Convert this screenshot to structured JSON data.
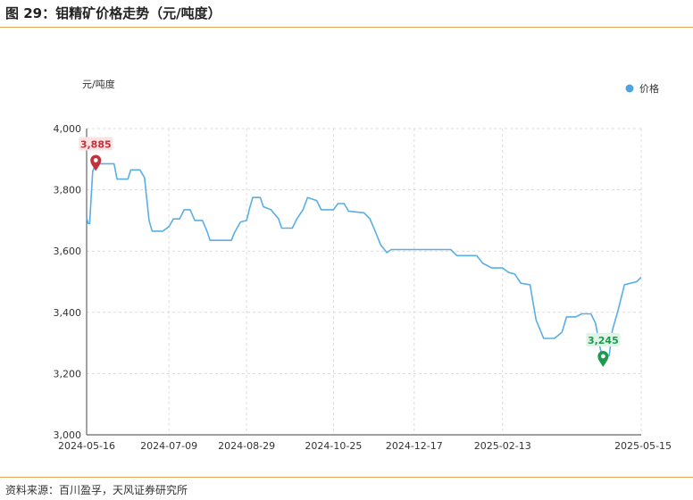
{
  "figure": {
    "title": "图 29：钼精矿价格走势（元/吨度）",
    "source": "资料来源：百川盈孚，天风证券研究所"
  },
  "chart_data": {
    "type": "line",
    "unit_label": "元/吨度",
    "legend": {
      "label": "价格",
      "placement": "top-right",
      "color": "#4FA3E0"
    },
    "line_color": "#5AAEE3",
    "ylim": [
      3000,
      4000
    ],
    "y_ticks": [
      "3,000",
      "3,200",
      "3,400",
      "3,600",
      "3,800",
      "4,000"
    ],
    "y_tick_values": [
      3000,
      3200,
      3400,
      3600,
      3800,
      4000
    ],
    "x_tick_labels": [
      "2024-05-16",
      "2024-07-09",
      "2024-08-29",
      "2024-10-25",
      "2024-12-17",
      "2025-02-13",
      "2025-05-15"
    ],
    "x_tick_dates": [
      "2024-05-16",
      "2024-07-09",
      "2024-08-29",
      "2024-10-25",
      "2024-12-17",
      "2025-02-13",
      "2025-05-15"
    ],
    "grid": true,
    "series": [
      {
        "name": "价格",
        "points": [
          [
            "2024-05-16",
            3710
          ],
          [
            "2024-05-17",
            3690
          ],
          [
            "2024-05-18",
            3690
          ],
          [
            "2024-05-20",
            3860
          ],
          [
            "2024-05-22",
            3885
          ],
          [
            "2024-05-30",
            3885
          ],
          [
            "2024-06-03",
            3885
          ],
          [
            "2024-06-05",
            3835
          ],
          [
            "2024-06-12",
            3835
          ],
          [
            "2024-06-14",
            3865
          ],
          [
            "2024-06-20",
            3865
          ],
          [
            "2024-06-23",
            3840
          ],
          [
            "2024-06-26",
            3700
          ],
          [
            "2024-06-28",
            3665
          ],
          [
            "2024-07-05",
            3665
          ],
          [
            "2024-07-09",
            3680
          ],
          [
            "2024-07-12",
            3705
          ],
          [
            "2024-07-16",
            3705
          ],
          [
            "2024-07-19",
            3735
          ],
          [
            "2024-07-23",
            3735
          ],
          [
            "2024-07-26",
            3700
          ],
          [
            "2024-07-31",
            3700
          ],
          [
            "2024-08-03",
            3665
          ],
          [
            "2024-08-05",
            3635
          ],
          [
            "2024-08-19",
            3635
          ],
          [
            "2024-08-21",
            3660
          ],
          [
            "2024-08-25",
            3695
          ],
          [
            "2024-08-29",
            3700
          ],
          [
            "2024-08-31",
            3740
          ],
          [
            "2024-09-02",
            3775
          ],
          [
            "2024-09-07",
            3775
          ],
          [
            "2024-09-09",
            3745
          ],
          [
            "2024-09-14",
            3735
          ],
          [
            "2024-09-19",
            3705
          ],
          [
            "2024-09-21",
            3675
          ],
          [
            "2024-09-28",
            3675
          ],
          [
            "2024-10-01",
            3705
          ],
          [
            "2024-10-05",
            3735
          ],
          [
            "2024-10-08",
            3775
          ],
          [
            "2024-10-14",
            3765
          ],
          [
            "2024-10-17",
            3735
          ],
          [
            "2024-10-25",
            3735
          ],
          [
            "2024-10-28",
            3755
          ],
          [
            "2024-11-01",
            3755
          ],
          [
            "2024-11-04",
            3730
          ],
          [
            "2024-11-14",
            3725
          ],
          [
            "2024-11-18",
            3705
          ],
          [
            "2024-11-21",
            3670
          ],
          [
            "2024-11-25",
            3620
          ],
          [
            "2024-11-29",
            3595
          ],
          [
            "2024-12-02",
            3605
          ],
          [
            "2024-12-17",
            3605
          ],
          [
            "2025-01-10",
            3605
          ],
          [
            "2025-01-14",
            3585
          ],
          [
            "2025-01-27",
            3585
          ],
          [
            "2025-01-31",
            3560
          ],
          [
            "2025-02-06",
            3545
          ],
          [
            "2025-02-13",
            3545
          ],
          [
            "2025-02-17",
            3530
          ],
          [
            "2025-02-21",
            3525
          ],
          [
            "2025-02-25",
            3495
          ],
          [
            "2025-03-03",
            3490
          ],
          [
            "2025-03-07",
            3375
          ],
          [
            "2025-03-12",
            3315
          ],
          [
            "2025-03-19",
            3315
          ],
          [
            "2025-03-24",
            3335
          ],
          [
            "2025-03-27",
            3385
          ],
          [
            "2025-04-02",
            3385
          ],
          [
            "2025-04-06",
            3395
          ],
          [
            "2025-04-12",
            3395
          ],
          [
            "2025-04-15",
            3365
          ],
          [
            "2025-04-18",
            3285
          ],
          [
            "2025-04-20",
            3245
          ],
          [
            "2025-04-24",
            3260
          ],
          [
            "2025-04-26",
            3340
          ],
          [
            "2025-04-30",
            3410
          ],
          [
            "2025-05-04",
            3490
          ],
          [
            "2025-05-08",
            3495
          ],
          [
            "2025-05-12",
            3500
          ],
          [
            "2025-05-15",
            3515
          ]
        ]
      }
    ],
    "annotations": [
      {
        "label": "3,885",
        "date": "2024-05-22",
        "value": 3885,
        "kind": "max",
        "color": "#C0333A",
        "bg": "#FBE3E4"
      },
      {
        "label": "3,245",
        "date": "2025-04-20",
        "value": 3245,
        "kind": "min",
        "color": "#1E9A50",
        "bg": "#DFF4E6"
      }
    ]
  }
}
